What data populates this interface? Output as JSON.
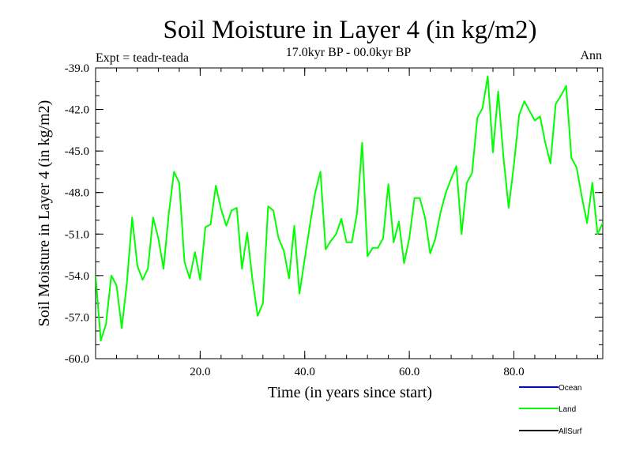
{
  "chart_data": {
    "type": "line",
    "title": "Soil Moisture in Layer 4 (in kg/m2)",
    "subtitle": "17.0kyr BP - 00.0kyr BP",
    "left_note": "Expt = teadr-teada",
    "right_note": "Ann",
    "xlabel": "Time (in years since start)",
    "ylabel": "Soil Moisture in Layer 4 (in kg/m2)",
    "xlim": [
      0,
      97
    ],
    "ylim": [
      -60.0,
      -39.0
    ],
    "x_ticks": [
      20,
      40,
      60,
      80
    ],
    "x_tick_labels": [
      "20.0",
      "40.0",
      "60.0",
      "80.0"
    ],
    "y_ticks": [
      -60,
      -57,
      -54,
      -51,
      -48,
      -45,
      -42,
      -39
    ],
    "y_tick_labels": [
      "-60.0",
      "-57.0",
      "-54.0",
      "-51.0",
      "-48.0",
      "-45.0",
      "-42.0",
      "-39.0"
    ],
    "legend": [
      {
        "name": "Ocean",
        "color": "#0000ff"
      },
      {
        "name": "Land",
        "color": "#00ff00"
      },
      {
        "name": "AllSurf",
        "color": "#000000"
      }
    ],
    "series": [
      {
        "name": "Land",
        "color": "#00ff00",
        "x": [
          0,
          1,
          2,
          3,
          4,
          5,
          6,
          7,
          8,
          9,
          10,
          11,
          12,
          13,
          14,
          15,
          16,
          17,
          18,
          19,
          20,
          21,
          22,
          23,
          24,
          25,
          26,
          27,
          28,
          29,
          30,
          31,
          32,
          33,
          34,
          35,
          36,
          37,
          38,
          39,
          40,
          41,
          42,
          43,
          44,
          45,
          46,
          47,
          48,
          49,
          50,
          51,
          52,
          53,
          54,
          55,
          56,
          57,
          58,
          59,
          60,
          61,
          62,
          63,
          64,
          65,
          66,
          67,
          68,
          69,
          70,
          71,
          72,
          73,
          74,
          75,
          76,
          77,
          78,
          79,
          80,
          81,
          82,
          83,
          84,
          85,
          86,
          87,
          88,
          89,
          90,
          91,
          92,
          93,
          94,
          95,
          96,
          97
        ],
        "values": [
          -54.0,
          -58.7,
          -57.5,
          -54.0,
          -54.7,
          -57.8,
          -54.5,
          -49.8,
          -53.3,
          -54.3,
          -53.5,
          -49.8,
          -51.3,
          -53.5,
          -49.5,
          -46.5,
          -47.3,
          -53.0,
          -54.2,
          -52.3,
          -54.3,
          -50.5,
          -50.3,
          -47.5,
          -49.2,
          -50.4,
          -49.3,
          -49.1,
          -53.5,
          -50.9,
          -54.3,
          -56.9,
          -56.0,
          -49.0,
          -49.3,
          -51.3,
          -52.2,
          -54.2,
          -50.4,
          -55.3,
          -52.8,
          -50.3,
          -48.0,
          -46.5,
          -52.1,
          -51.5,
          -51.0,
          -49.9,
          -51.6,
          -51.6,
          -49.5,
          -44.4,
          -52.6,
          -52.0,
          -52.0,
          -51.3,
          -47.4,
          -51.6,
          -50.1,
          -53.1,
          -51.3,
          -48.4,
          -48.4,
          -49.8,
          -52.4,
          -51.3,
          -49.4,
          -48.0,
          -47.0,
          -46.1,
          -51.0,
          -47.3,
          -46.6,
          -42.6,
          -41.9,
          -39.6,
          -45.1,
          -40.7,
          -45.4,
          -49.1,
          -46.0,
          -42.4,
          -41.4,
          -42.1,
          -42.8,
          -42.5,
          -44.4,
          -45.9,
          -41.6,
          -41.0,
          -40.3,
          -45.5,
          -46.2,
          -48.3,
          -50.2,
          -47.3,
          -51.0,
          -50.2
        ]
      }
    ]
  }
}
